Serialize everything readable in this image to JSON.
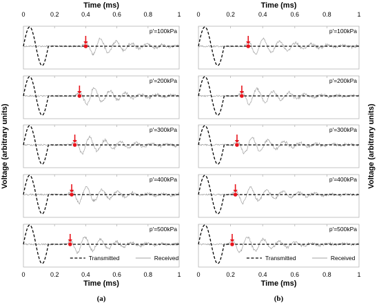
{
  "chart_data": [
    {
      "type": "line",
      "figure_label": "(a)",
      "xlabel": "Time (ms)",
      "ylabel": "Voltage (arbitrary units)",
      "xlim": [
        0,
        1
      ],
      "x_ticks": [
        "0",
        "0.2",
        "0.4",
        "0.6",
        "0.8",
        "1"
      ],
      "series": [
        {
          "name": "Transmitted",
          "style": "dashed",
          "color": "#000000"
        },
        {
          "name": "Received",
          "style": "solid",
          "color": "#a0a0a0"
        }
      ],
      "panels": [
        {
          "label": "p'=100kPa",
          "arrival_time_ms": 0.4
        },
        {
          "label": "p'=200kPa",
          "arrival_time_ms": 0.36
        },
        {
          "label": "p'=300kPa",
          "arrival_time_ms": 0.33
        },
        {
          "label": "p'=400kPa",
          "arrival_time_ms": 0.31
        },
        {
          "label": "p'=500kPa",
          "arrival_time_ms": 0.3
        }
      ]
    },
    {
      "type": "line",
      "figure_label": "(b)",
      "xlabel": "Time (ms)",
      "ylabel": "Voltage (arbitrary units)",
      "xlim": [
        0,
        1
      ],
      "x_ticks": [
        "0",
        "0.2",
        "0.4",
        "0.6",
        "0.8",
        "1"
      ],
      "series": [
        {
          "name": "Transmitted",
          "style": "dashed",
          "color": "#000000"
        },
        {
          "name": "Received",
          "style": "solid",
          "color": "#a0a0a0"
        }
      ],
      "panels": [
        {
          "label": "p'=100kPa",
          "arrival_time_ms": 0.31
        },
        {
          "label": "p'=200kPa",
          "arrival_time_ms": 0.27
        },
        {
          "label": "p'=300kPa",
          "arrival_time_ms": 0.24
        },
        {
          "label": "p'=400kPa",
          "arrival_time_ms": 0.23
        },
        {
          "label": "p'=500kPa",
          "arrival_time_ms": 0.21
        }
      ]
    }
  ],
  "colors": {
    "marker": "#e8141c",
    "transmitted": "#000000",
    "received": "#a0a0a0",
    "frame": "#b4b4b4"
  }
}
